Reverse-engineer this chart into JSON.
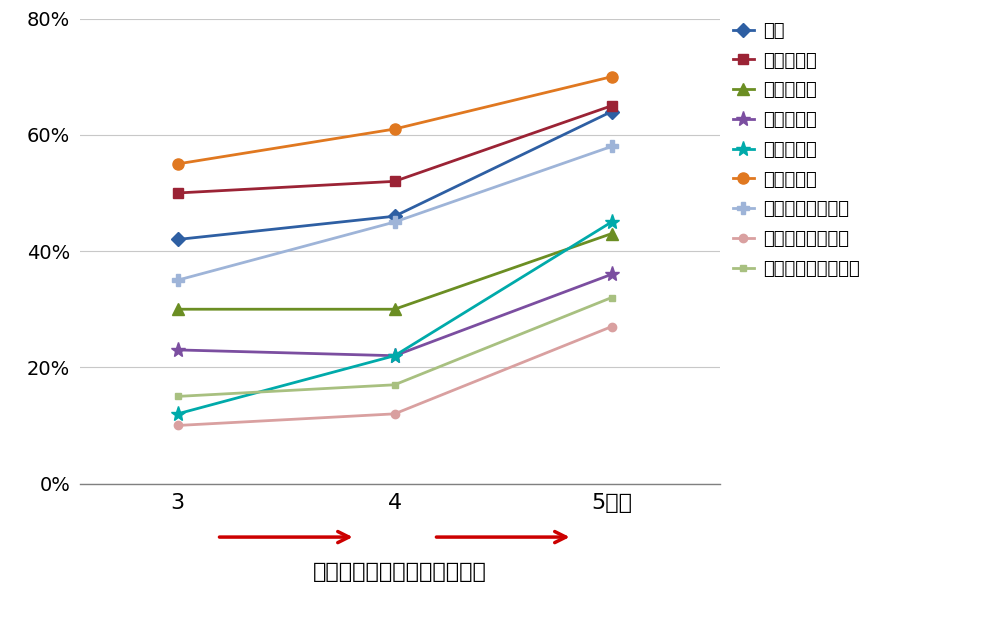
{
  "xlabel": "転居後の住宅の断熱グレード",
  "x_ticks": [
    "3",
    "4",
    "5以上"
  ],
  "x_values": [
    3,
    4,
    5
  ],
  "ylim": [
    0,
    0.8
  ],
  "yticks": [
    0.0,
    0.2,
    0.4,
    0.6,
    0.8
  ],
  "ytick_labels": [
    "0%",
    "20%",
    "40%",
    "60%",
    "80%"
  ],
  "series": [
    {
      "label": "せき",
      "color": "#2E5FA3",
      "marker": "D",
      "markersize": 7,
      "values": [
        0.42,
        0.46,
        0.64
      ]
    },
    {
      "label": "のどの痛み",
      "color": "#9B2335",
      "marker": "s",
      "markersize": 7,
      "values": [
        0.5,
        0.52,
        0.65
      ]
    },
    {
      "label": "肌のかゆみ",
      "color": "#6B8E23",
      "marker": "^",
      "markersize": 8,
      "values": [
        0.3,
        0.3,
        0.43
      ]
    },
    {
      "label": "目のかゆみ",
      "color": "#7B4EA0",
      "marker": "*",
      "markersize": 11,
      "values": [
        0.23,
        0.22,
        0.36
      ]
    },
    {
      "label": "手足の冷え",
      "color": "#00AAAA",
      "marker": "*",
      "markersize": 11,
      "values": [
        0.12,
        0.22,
        0.45
      ]
    },
    {
      "label": "気管支喘息",
      "color": "#E07820",
      "marker": "o",
      "markersize": 8,
      "values": [
        0.55,
        0.61,
        0.7
      ]
    },
    {
      "label": "アトピー性皮膚炎",
      "color": "#9EB4D8",
      "marker": "P",
      "markersize": 8,
      "values": [
        0.35,
        0.45,
        0.58
      ]
    },
    {
      "label": "アレルギー性鼻炎",
      "color": "#D9A0A0",
      "marker": "o",
      "markersize": 6,
      "values": [
        0.1,
        0.12,
        0.27
      ]
    },
    {
      "label": "アレルギー性結膚炎",
      "color": "#A8C080",
      "marker": "s",
      "markersize": 5,
      "values": [
        0.15,
        0.17,
        0.32
      ]
    }
  ],
  "arrow_color": "#CC0000",
  "background_color": "#FFFFFF"
}
